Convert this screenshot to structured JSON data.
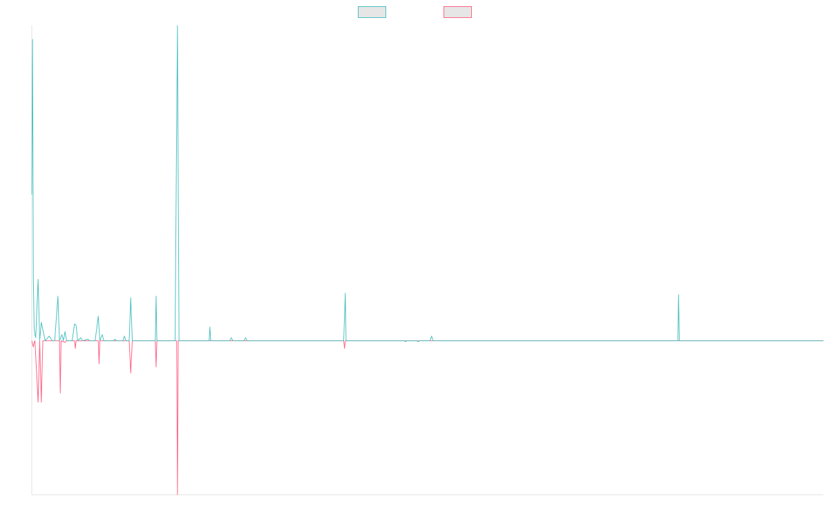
{
  "chart_data": {
    "type": "line",
    "title": "",
    "xlabel": "",
    "ylabel": "",
    "grid": false,
    "legend_position": "top-center",
    "xlim": [
      0,
      1000
    ],
    "ylim": [
      -100,
      205
    ],
    "series": [
      {
        "color": "#4bc0c0",
        "fill": "#e6e6e6",
        "points": [
          [
            0,
            95
          ],
          [
            1,
            196
          ],
          [
            2,
            40
          ],
          [
            3,
            8
          ],
          [
            4,
            4
          ],
          [
            5,
            2
          ],
          [
            8,
            40
          ],
          [
            10,
            0
          ],
          [
            12,
            12
          ],
          [
            17,
            0
          ],
          [
            22,
            3
          ],
          [
            26,
            0
          ],
          [
            29,
            0
          ],
          [
            33,
            29
          ],
          [
            35,
            0
          ],
          [
            38,
            4
          ],
          [
            40,
            0
          ],
          [
            42,
            6
          ],
          [
            44,
            0
          ],
          [
            51,
            0
          ],
          [
            54,
            11
          ],
          [
            56,
            10
          ],
          [
            58,
            0
          ],
          [
            62,
            2
          ],
          [
            64,
            0
          ],
          [
            71,
            1
          ],
          [
            73,
            0
          ],
          [
            80,
            0
          ],
          [
            84,
            16
          ],
          [
            86,
            0
          ],
          [
            89,
            4
          ],
          [
            91,
            0
          ],
          [
            103,
            0
          ],
          [
            105,
            1
          ],
          [
            107,
            0
          ],
          [
            115,
            0
          ],
          [
            117,
            3
          ],
          [
            119,
            0
          ],
          [
            123,
            0
          ],
          [
            125,
            28
          ],
          [
            127,
            0
          ],
          [
            156,
            0
          ],
          [
            157,
            29
          ],
          [
            158,
            0
          ],
          [
            181,
            0
          ],
          [
            183,
            140
          ],
          [
            184,
            205
          ],
          [
            186,
            0
          ],
          [
            224,
            0
          ],
          [
            225,
            9
          ],
          [
            226,
            0
          ],
          [
            250,
            0
          ],
          [
            252,
            2
          ],
          [
            254,
            0
          ],
          [
            268,
            0
          ],
          [
            270,
            2
          ],
          [
            272,
            0
          ],
          [
            394,
            0
          ],
          [
            396,
            31
          ],
          [
            397,
            0
          ],
          [
            470,
            0
          ],
          [
            472,
            -0.5
          ],
          [
            474,
            0
          ],
          [
            486,
            0
          ],
          [
            488,
            -0.5
          ],
          [
            490,
            0
          ],
          [
            503,
            0
          ],
          [
            505,
            3
          ],
          [
            507,
            0
          ],
          [
            816,
            0
          ],
          [
            817,
            30
          ],
          [
            818,
            0
          ],
          [
            1000,
            0
          ]
        ]
      },
      {
        "color": "#ff6384",
        "fill": "#e6e6e6",
        "points": [
          [
            0,
            0
          ],
          [
            2,
            -4
          ],
          [
            3,
            -1
          ],
          [
            4,
            0
          ],
          [
            8,
            -40
          ],
          [
            10,
            0
          ],
          [
            12,
            -40
          ],
          [
            14,
            0
          ],
          [
            35,
            0
          ],
          [
            36,
            -34
          ],
          [
            37,
            0
          ],
          [
            42,
            -1
          ],
          [
            44,
            0
          ],
          [
            54,
            0
          ],
          [
            55,
            -5
          ],
          [
            56,
            0
          ],
          [
            84,
            0
          ],
          [
            85,
            -15
          ],
          [
            86,
            0
          ],
          [
            123,
            0
          ],
          [
            125,
            -21
          ],
          [
            127,
            0
          ],
          [
            156,
            0
          ],
          [
            157,
            -17
          ],
          [
            158,
            0
          ],
          [
            183,
            0
          ],
          [
            184,
            -100
          ],
          [
            185,
            0
          ],
          [
            394,
            0
          ],
          [
            395,
            -5
          ],
          [
            396,
            0
          ],
          [
            1000,
            0
          ]
        ]
      }
    ]
  }
}
